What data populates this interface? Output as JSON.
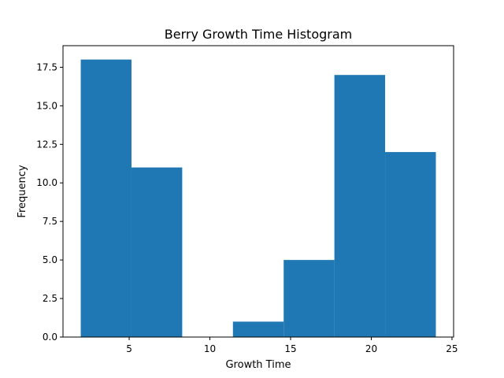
{
  "chart_data": {
    "type": "bar",
    "title": "Berry Growth Time Histogram",
    "xlabel": "Growth Time",
    "ylabel": "Frequency",
    "bin_edges": [
      2,
      5.1428571,
      8.2857143,
      11.4285714,
      14.5714286,
      17.7142857,
      20.8571429,
      24
    ],
    "values": [
      18,
      11,
      0,
      1,
      5,
      17,
      12
    ],
    "xlim": [
      0.9,
      25.1
    ],
    "ylim": [
      0,
      18.9
    ],
    "xticks": [
      5,
      10,
      15,
      20,
      25
    ],
    "xtick_labels": [
      "5",
      "10",
      "15",
      "20",
      "25"
    ],
    "yticks": [
      0,
      2.5,
      5,
      7.5,
      10,
      12.5,
      15,
      17.5
    ],
    "ytick_labels": [
      "0.0",
      "2.5",
      "5.0",
      "7.5",
      "10.0",
      "12.5",
      "15.0",
      "17.5"
    ],
    "grid": false,
    "bar_color": "#1f77b4"
  }
}
